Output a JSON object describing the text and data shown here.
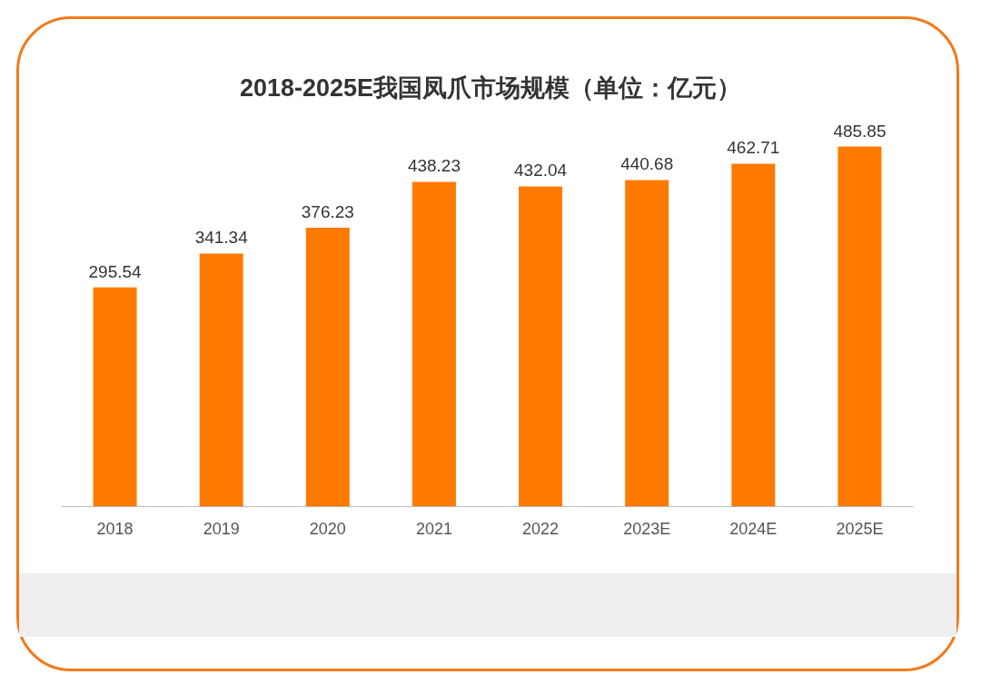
{
  "chart_data": {
    "type": "bar",
    "title": "2018-2025E我国凤爪市场规模（单位：亿元）",
    "categories": [
      "2018",
      "2019",
      "2020",
      "2021",
      "2022",
      "2023E",
      "2024E",
      "2025E"
    ],
    "values": [
      295.54,
      341.34,
      376.23,
      438.23,
      432.04,
      440.68,
      462.71,
      485.85
    ],
    "color": "#ff7a00",
    "data_labels": true
  }
}
